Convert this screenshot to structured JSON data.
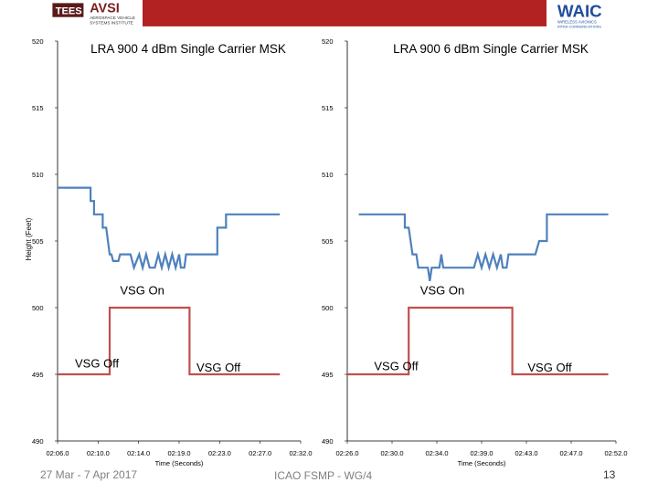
{
  "header": {
    "left_logo_text": "TEES",
    "left_org": "AVSI",
    "left_org_sub1": "AEROSPACE VEHICLE",
    "left_org_sub2": "SYSTEMS INSTITUTE",
    "right_logo": "WAIC",
    "right_logo_sub1": "WIRELESS AVIONICS",
    "right_logo_sub2": "INTRA-COMMUNICATIONS",
    "colors": {
      "bar": "#b22222",
      "left_logo_bg": "#ffffff",
      "waic_blue": "#1f4e9c"
    }
  },
  "footer": {
    "left": "27 Mar - 7 Apr 2017",
    "center": "ICAO FSMP - WG/4",
    "right": "13"
  },
  "shared_axis": {
    "ylabel": "Height (Feet)",
    "xlabel": "Time (Seconds)",
    "yticks": [
      "520",
      "515",
      "510",
      "505",
      "500",
      "495",
      "490"
    ],
    "ylim": [
      490,
      520
    ]
  },
  "chart_data": [
    {
      "type": "line",
      "title": "LRA 900 4 dBm Single Carrier MSK",
      "xlabel": "Time (Seconds)",
      "ylabel": "Height (Feet)",
      "ylim": [
        490,
        520
      ],
      "xticks": [
        "02:06.0",
        "02:10.0",
        "02:14.0",
        "02:19.0",
        "02:23.0",
        "02:27.0",
        "02:32.0"
      ],
      "xlim": [
        0,
        7
      ],
      "series": [
        {
          "color": "#4f81bd",
          "points": [
            [
              0,
              509
            ],
            [
              0.95,
              509
            ],
            [
              0.95,
              508
            ],
            [
              1.05,
              508
            ],
            [
              1.05,
              507
            ],
            [
              1.3,
              507
            ],
            [
              1.3,
              506
            ],
            [
              1.4,
              506
            ],
            [
              1.45,
              505
            ],
            [
              1.5,
              504
            ],
            [
              1.55,
              504
            ],
            [
              1.6,
              503.5
            ],
            [
              1.75,
              503.5
            ],
            [
              1.8,
              504
            ],
            [
              2.1,
              504
            ],
            [
              2.2,
              503
            ],
            [
              2.35,
              504
            ],
            [
              2.45,
              503
            ],
            [
              2.55,
              504
            ],
            [
              2.65,
              503
            ],
            [
              2.8,
              503
            ],
            [
              2.9,
              504
            ],
            [
              3,
              503
            ],
            [
              3.1,
              504
            ],
            [
              3.2,
              503
            ],
            [
              3.3,
              504
            ],
            [
              3.4,
              503
            ],
            [
              3.5,
              504
            ],
            [
              3.55,
              503
            ],
            [
              3.65,
              503
            ],
            [
              3.7,
              504
            ],
            [
              4.6,
              504
            ],
            [
              4.6,
              506
            ],
            [
              4.85,
              506
            ],
            [
              4.85,
              507
            ],
            [
              6.4,
              507
            ]
          ]
        },
        {
          "color": "#c0504d",
          "points": [
            [
              0,
              495
            ],
            [
              1.5,
              495
            ],
            [
              1.5,
              500
            ],
            [
              3.8,
              500
            ],
            [
              3.8,
              495
            ],
            [
              6.4,
              495
            ]
          ]
        }
      ],
      "annotations": [
        {
          "text": "VSG On",
          "x": 1.8,
          "y": 501
        },
        {
          "text": "VSG Off",
          "x": 0.5,
          "y": 495.5
        },
        {
          "text": "VSG Off",
          "x": 4,
          "y": 495.2
        }
      ]
    },
    {
      "type": "line",
      "title": "LRA 900 6 dBm Single Carrier MSK",
      "xlabel": "Time (Seconds)",
      "ylabel": "Height (Feet)",
      "ylim": [
        490,
        520
      ],
      "xticks": [
        "02:26.0",
        "02:30.0",
        "02:34.0",
        "02:39.0",
        "02:43.0",
        "02:47.0",
        "02:52.0"
      ],
      "xlim": [
        0,
        7
      ],
      "series": [
        {
          "color": "#4f81bd",
          "points": [
            [
              0.3,
              507
            ],
            [
              1.5,
              507
            ],
            [
              1.5,
              506
            ],
            [
              1.6,
              506
            ],
            [
              1.65,
              505
            ],
            [
              1.7,
              504
            ],
            [
              1.8,
              504
            ],
            [
              1.85,
              503
            ],
            [
              2,
              503
            ],
            [
              2.1,
              503
            ],
            [
              2.15,
              502
            ],
            [
              2.2,
              503
            ],
            [
              2.4,
              503
            ],
            [
              2.45,
              504
            ],
            [
              2.5,
              503
            ],
            [
              3.3,
              503
            ],
            [
              3.4,
              504
            ],
            [
              3.5,
              503
            ],
            [
              3.6,
              504
            ],
            [
              3.7,
              503
            ],
            [
              3.8,
              504
            ],
            [
              3.9,
              503
            ],
            [
              4,
              504
            ],
            [
              4.05,
              503
            ],
            [
              4.15,
              503
            ],
            [
              4.2,
              504
            ],
            [
              4.9,
              504
            ],
            [
              5,
              505
            ],
            [
              5.2,
              505
            ],
            [
              5.2,
              507
            ],
            [
              6.8,
              507
            ]
          ]
        },
        {
          "color": "#c0504d",
          "points": [
            [
              0,
              495
            ],
            [
              1.6,
              495
            ],
            [
              1.6,
              500
            ],
            [
              4.3,
              500
            ],
            [
              4.3,
              495
            ],
            [
              6.8,
              495
            ]
          ]
        }
      ],
      "annotations": [
        {
          "text": "VSG On",
          "x": 1.9,
          "y": 501
        },
        {
          "text": "VSG Off",
          "x": 0.7,
          "y": 495.3
        },
        {
          "text": "VSG Off",
          "x": 4.7,
          "y": 495.2
        }
      ]
    }
  ]
}
